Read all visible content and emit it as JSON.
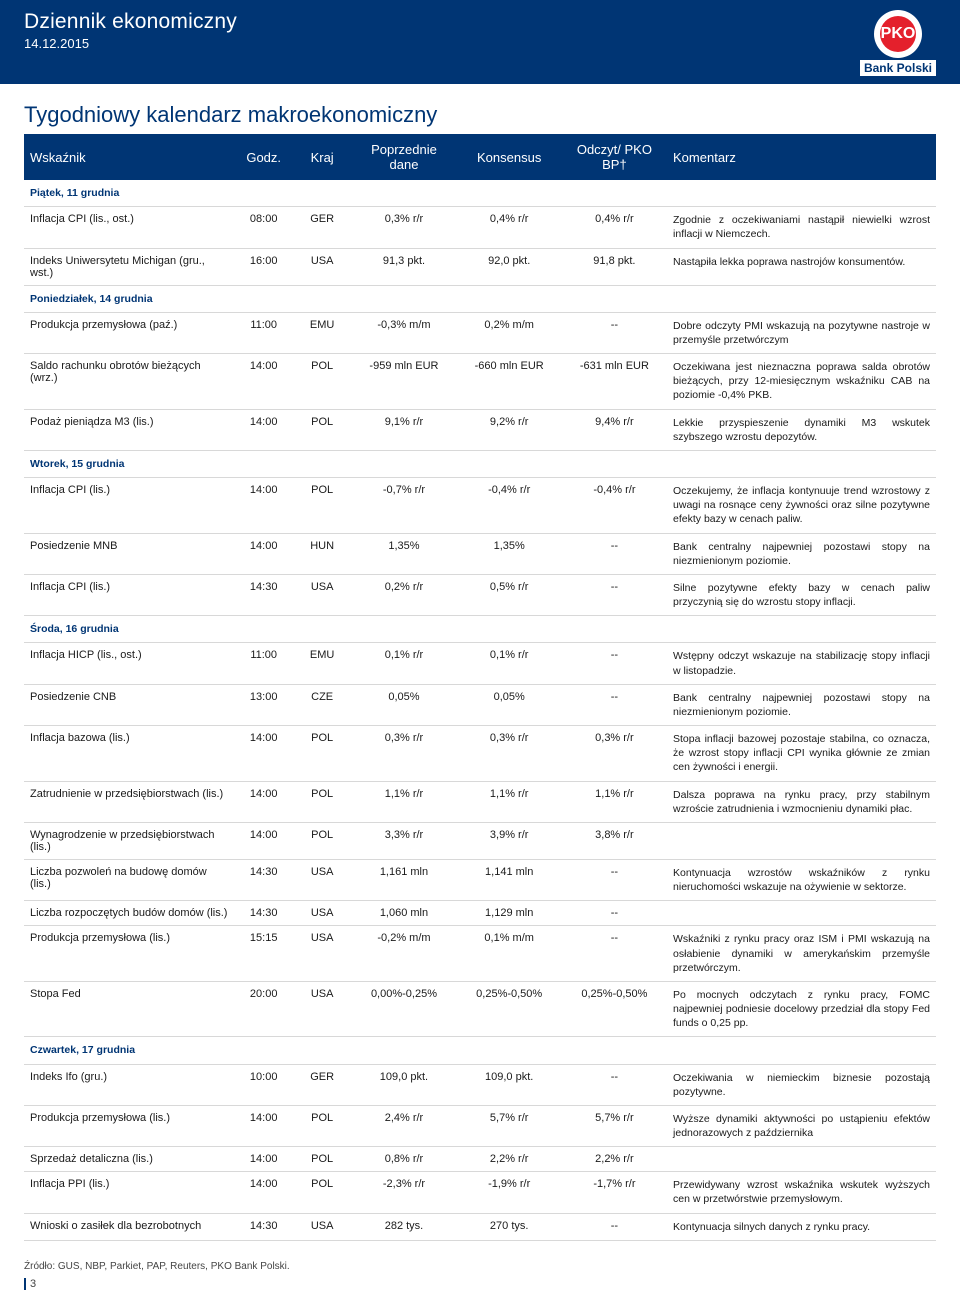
{
  "header": {
    "title": "Dziennik ekonomiczny",
    "date": "14.12.2015",
    "bank_name": "Bank Polski",
    "logo_letters": "PKO"
  },
  "section_title": "Tygodniowy kalendarz makroekonomiczny",
  "columns": {
    "c1": "Wskaźnik",
    "c2": "Godz.",
    "c3": "Kraj",
    "c4": "Poprzednie dane",
    "c5": "Konsensus",
    "c6": "Odczyt/ PKO BP†",
    "c7": "Komentarz"
  },
  "days": [
    {
      "label": "Piątek, 11 grudnia",
      "rows": [
        {
          "ind": "Inflacja CPI (lis., ost.)",
          "time": "08:00",
          "ctry": "GER",
          "prev": "0,3% r/r",
          "cons": "0,4% r/r",
          "read": "0,4% r/r",
          "comm": "Zgodnie z oczekiwaniami nastąpił niewielki wzrost inflacji w Niemczech."
        },
        {
          "ind": "Indeks Uniwersytetu Michigan (gru., wst.)",
          "time": "16:00",
          "ctry": "USA",
          "prev": "91,3 pkt.",
          "cons": "92,0 pkt.",
          "read": "91,8 pkt.",
          "comm": "Nastąpiła lekka poprawa nastrojów konsumentów."
        }
      ]
    },
    {
      "label": "Poniedziałek, 14 grudnia",
      "rows": [
        {
          "ind": "Produkcja przemysłowa (paź.)",
          "time": "11:00",
          "ctry": "EMU",
          "prev": "-0,3% m/m",
          "cons": "0,2% m/m",
          "read": "--",
          "comm": "Dobre odczyty PMI wskazują na pozytywne nastroje w przemyśle przetwórczym"
        },
        {
          "ind": "Saldo rachunku obrotów bieżących (wrz.)",
          "time": "14:00",
          "ctry": "POL",
          "prev": "-959 mln EUR",
          "cons": "-660 mln EUR",
          "read": "-631 mln EUR",
          "comm": "Oczekiwana jest nieznaczna poprawa salda obrotów bieżących, przy 12-miesięcznym wskaźniku CAB na poziomie -0,4% PKB."
        },
        {
          "ind": "Podaż pieniądza M3 (lis.)",
          "time": "14:00",
          "ctry": "POL",
          "prev": "9,1% r/r",
          "cons": "9,2% r/r",
          "read": "9,4% r/r",
          "comm": "Lekkie przyspieszenie dynamiki M3 wskutek szybszego wzrostu depozytów."
        }
      ]
    },
    {
      "label": "Wtorek, 15 grudnia",
      "rows": [
        {
          "ind": "Inflacja CPI (lis.)",
          "time": "14:00",
          "ctry": "POL",
          "prev": "-0,7% r/r",
          "cons": "-0,4% r/r",
          "read": "-0,4% r/r",
          "comm": "Oczekujemy, że inflacja kontynuuje trend wzrostowy z uwagi na rosnące ceny żywności oraz silne pozytywne efekty bazy w cenach paliw."
        },
        {
          "ind": "Posiedzenie MNB",
          "time": "14:00",
          "ctry": "HUN",
          "prev": "1,35%",
          "cons": "1,35%",
          "read": "--",
          "comm": "Bank centralny najpewniej pozostawi stopy na niezmienionym poziomie."
        },
        {
          "ind": "Inflacja CPI (lis.)",
          "time": "14:30",
          "ctry": "USA",
          "prev": "0,2% r/r",
          "cons": "0,5% r/r",
          "read": "--",
          "comm": "Silne pozytywne efekty bazy w cenach paliw przyczynią się do wzrostu stopy inflacji."
        }
      ]
    },
    {
      "label": "Środa, 16 grudnia",
      "rows": [
        {
          "ind": "Inflacja HICP (lis., ost.)",
          "time": "11:00",
          "ctry": "EMU",
          "prev": "0,1% r/r",
          "cons": "0,1% r/r",
          "read": "--",
          "comm": "Wstępny odczyt wskazuje na stabilizację stopy inflacji w listopadzie."
        },
        {
          "ind": "Posiedzenie CNB",
          "time": "13:00",
          "ctry": "CZE",
          "prev": "0,05%",
          "cons": "0,05%",
          "read": "--",
          "comm": "Bank centralny najpewniej pozostawi stopy na niezmienionym poziomie."
        },
        {
          "ind": "Inflacja bazowa (lis.)",
          "time": "14:00",
          "ctry": "POL",
          "prev": "0,3% r/r",
          "cons": "0,3% r/r",
          "read": "0,3% r/r",
          "comm": "Stopa inflacji bazowej pozostaje stabilna, co oznacza, że wzrost stopy inflacji CPI wynika głównie ze zmian cen żywności i energii."
        },
        {
          "ind": "Zatrudnienie w przedsiębiorstwach (lis.)",
          "time": "14:00",
          "ctry": "POL",
          "prev": "1,1% r/r",
          "cons": "1,1% r/r",
          "read": "1,1% r/r",
          "comm": "Dalsza poprawa na rynku pracy, przy stabilnym wzroście zatrudnienia i wzmocnieniu dynamiki płac."
        },
        {
          "ind": "Wynagrodzenie w przedsiębiorstwach (lis.)",
          "time": "14:00",
          "ctry": "POL",
          "prev": "3,3% r/r",
          "cons": "3,9% r/r",
          "read": "3,8% r/r",
          "comm": ""
        },
        {
          "ind": "Liczba pozwoleń na budowę domów (lis.)",
          "time": "14:30",
          "ctry": "USA",
          "prev": "1,161 mln",
          "cons": "1,141 mln",
          "read": "--",
          "comm": "Kontynuacja wzrostów wskaźników z rynku nieruchomości wskazuje na ożywienie w sektorze."
        },
        {
          "ind": "Liczba rozpoczętych budów domów (lis.)",
          "time": "14:30",
          "ctry": "USA",
          "prev": "1,060 mln",
          "cons": "1,129 mln",
          "read": "--",
          "comm": ""
        },
        {
          "ind": "Produkcja przemysłowa (lis.)",
          "time": "15:15",
          "ctry": "USA",
          "prev": "-0,2% m/m",
          "cons": "0,1% m/m",
          "read": "--",
          "comm": "Wskaźniki z rynku pracy oraz ISM i PMI wskazują na osłabienie dynamiki w amerykańskim przemyśle przetwórczym."
        },
        {
          "ind": "Stopa Fed",
          "time": "20:00",
          "ctry": "USA",
          "prev": "0,00%-0,25%",
          "cons": "0,25%-0,50%",
          "read": "0,25%-0,50%",
          "comm": "Po mocnych odczytach z rynku pracy, FOMC najpewniej podniesie docelowy przedział dla stopy Fed funds o 0,25 pp."
        }
      ]
    },
    {
      "label": "Czwartek, 17 grudnia",
      "rows": [
        {
          "ind": "Indeks Ifo (gru.)",
          "time": "10:00",
          "ctry": "GER",
          "prev": "109,0 pkt.",
          "cons": "109,0 pkt.",
          "read": "--",
          "comm": "Oczekiwania w niemieckim biznesie pozostają pozytywne."
        },
        {
          "ind": "Produkcja przemysłowa (lis.)",
          "time": "14:00",
          "ctry": "POL",
          "prev": "2,4% r/r",
          "cons": "5,7% r/r",
          "read": "5,7% r/r",
          "comm": "Wyższe dynamiki aktywności po ustąpieniu efektów jednorazowych z października"
        },
        {
          "ind": "Sprzedaż detaliczna (lis.)",
          "time": "14:00",
          "ctry": "POL",
          "prev": "0,8% r/r",
          "cons": "2,2% r/r",
          "read": "2,2% r/r",
          "comm": ""
        },
        {
          "ind": "Inflacja PPI (lis.)",
          "time": "14:00",
          "ctry": "POL",
          "prev": "-2,3% r/r",
          "cons": "-1,9% r/r",
          "read": "-1,7% r/r",
          "comm": "Przewidywany wzrost wskaźnika wskutek wyższych cen w przetwórstwie przemysłowym."
        },
        {
          "ind": "Wnioski o zasiłek dla bezrobotnych",
          "time": "14:30",
          "ctry": "USA",
          "prev": "282 tys.",
          "cons": "270 tys.",
          "read": "--",
          "comm": "Kontynuacja silnych danych z rynku pracy."
        }
      ]
    }
  ],
  "source": "Źródło: GUS, NBP, Parkiet, PAP, Reuters, PKO Bank Polski.",
  "page_number": "3"
}
